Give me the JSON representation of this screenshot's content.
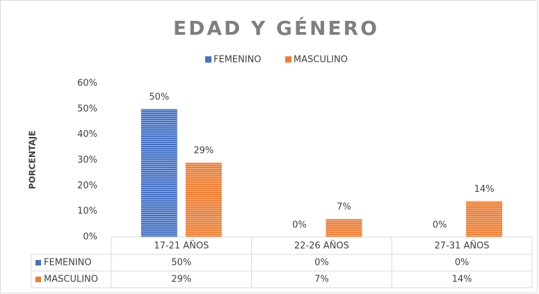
{
  "chart_data": {
    "type": "bar",
    "title": "EDAD Y GÉNERO",
    "y_label": "PORCENTAJE",
    "categories": [
      "17-21 AÑOS",
      "22-26 AÑOS",
      "27-31 AÑOS"
    ],
    "series": [
      {
        "name": "FEMENINO",
        "color": "#4472c4",
        "values": [
          50,
          0,
          0
        ],
        "value_labels": [
          "50%",
          "0%",
          "0%"
        ]
      },
      {
        "name": "MASCULINO",
        "color": "#ed7d31",
        "values": [
          29,
          7,
          14
        ],
        "value_labels": [
          "29%",
          "7%",
          "14%"
        ]
      }
    ],
    "ylim": [
      0,
      60
    ],
    "yticks": [
      {
        "value": 0,
        "label": "0%"
      },
      {
        "value": 10,
        "label": "10%"
      },
      {
        "value": 20,
        "label": "20%"
      },
      {
        "value": 30,
        "label": "30%"
      },
      {
        "value": 40,
        "label": "40%"
      },
      {
        "value": 50,
        "label": "50%"
      },
      {
        "value": 60,
        "label": "60%"
      }
    ],
    "grid": false,
    "legend": "top",
    "data_table": true
  }
}
